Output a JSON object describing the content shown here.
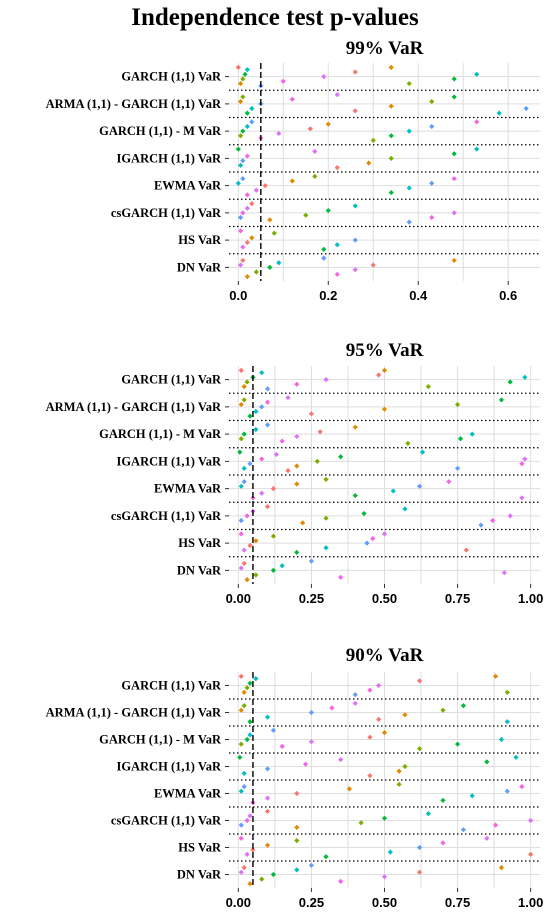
{
  "title": "Independence test p-values",
  "colors": {
    "series": [
      "#F8766D",
      "#E38900",
      "#7CAE00",
      "#00BA38",
      "#00BFC4",
      "#619CFF",
      "#F564E3",
      "#DB72FB"
    ],
    "threshold": "#000000",
    "grid": "#dedede",
    "separator": "#000000"
  },
  "chart_data": [
    {
      "type": "scatter",
      "title": "99% VaR",
      "categories": [
        "GARCH (1,1) VaR",
        "ARMA (1,1) - GARCH (1,1) VaR",
        "GARCH (1,1) - M VaR",
        "IGARCH (1,1) VaR",
        "EWMA VaR",
        "csGARCH (1,1) VaR",
        "HS VaR",
        "DN VaR"
      ],
      "xlim": [
        0,
        0.65
      ],
      "xticks": [
        0,
        0.2,
        0.4,
        0.6
      ],
      "xtick_labels": [
        "0.0",
        "0.2",
        "0.4",
        "0.6"
      ],
      "threshold": 0.05,
      "grid": true,
      "points": [
        [
          0.0,
          0.005,
          0.01,
          0.015,
          0.02,
          0.05,
          0.1,
          0.19,
          0.26,
          0.34,
          0.38,
          0.48,
          0.53
        ],
        [
          0.005,
          0.01,
          0.02,
          0.03,
          0.05,
          0.12,
          0.22,
          0.26,
          0.34,
          0.43,
          0.48,
          0.58,
          0.64
        ],
        [
          0.005,
          0.01,
          0.02,
          0.03,
          0.05,
          0.09,
          0.16,
          0.2,
          0.3,
          0.34,
          0.38,
          0.43,
          0.53
        ],
        [
          0.0,
          0.005,
          0.01,
          0.02,
          0.17,
          0.22,
          0.29,
          0.34,
          0.48,
          0.53
        ],
        [
          0.0,
          0.01,
          0.02,
          0.04,
          0.06,
          0.12,
          0.17,
          0.34,
          0.38,
          0.43,
          0.48
        ],
        [
          0.005,
          0.01,
          0.02,
          0.03,
          0.07,
          0.15,
          0.2,
          0.26,
          0.38,
          0.43,
          0.48
        ],
        [
          0.005,
          0.01,
          0.02,
          0.03,
          0.08,
          0.19,
          0.22,
          0.26
        ],
        [
          0.005,
          0.01,
          0.02,
          0.04,
          0.07,
          0.09,
          0.19,
          0.22,
          0.26,
          0.3,
          0.48
        ]
      ]
    },
    {
      "type": "scatter",
      "title": "95% VaR",
      "categories": [
        "GARCH (1,1) VaR",
        "ARMA (1,1) - GARCH (1,1) VaR",
        "GARCH (1,1) - M VaR",
        "IGARCH (1,1) VaR",
        "EWMA VaR",
        "csGARCH (1,1) VaR",
        "HS VaR",
        "DN VaR"
      ],
      "xlim": [
        0,
        1.0
      ],
      "xticks": [
        0,
        0.25,
        0.5,
        0.75,
        1.0
      ],
      "xtick_labels": [
        "0.00",
        "0.25",
        "0.50",
        "0.75",
        "1.00"
      ],
      "threshold": 0.05,
      "grid": true,
      "points": [
        [
          0.01,
          0.02,
          0.03,
          0.05,
          0.08,
          0.1,
          0.2,
          0.3,
          0.48,
          0.5,
          0.65,
          0.93,
          0.98
        ],
        [
          0.01,
          0.02,
          0.04,
          0.06,
          0.08,
          0.1,
          0.17,
          0.25,
          0.5,
          0.75,
          0.9
        ],
        [
          0.01,
          0.02,
          0.06,
          0.1,
          0.15,
          0.2,
          0.28,
          0.4,
          0.58,
          0.76,
          0.8
        ],
        [
          0.005,
          0.02,
          0.04,
          0.08,
          0.13,
          0.17,
          0.2,
          0.27,
          0.35,
          0.63,
          0.75,
          0.97,
          0.98
        ],
        [
          0.01,
          0.02,
          0.05,
          0.08,
          0.12,
          0.2,
          0.3,
          0.4,
          0.53,
          0.62,
          0.72,
          0.97
        ],
        [
          0.01,
          0.03,
          0.05,
          0.1,
          0.22,
          0.3,
          0.43,
          0.57,
          0.83,
          0.87,
          0.93
        ],
        [
          0.01,
          0.02,
          0.04,
          0.06,
          0.12,
          0.2,
          0.3,
          0.44,
          0.46,
          0.5,
          0.78
        ],
        [
          0.01,
          0.02,
          0.03,
          0.06,
          0.12,
          0.15,
          0.25,
          0.35,
          0.91
        ]
      ]
    },
    {
      "type": "scatter",
      "title": "90% VaR",
      "categories": [
        "GARCH (1,1) VaR",
        "ARMA (1,1) - GARCH (1,1) VaR",
        "GARCH (1,1) - M VaR",
        "IGARCH (1,1) VaR",
        "EWMA VaR",
        "csGARCH (1,1) VaR",
        "HS VaR",
        "DN VaR"
      ],
      "xlim": [
        0,
        1.0
      ],
      "xticks": [
        0,
        0.25,
        0.5,
        0.75,
        1.0
      ],
      "xtick_labels": [
        "0.00",
        "0.25",
        "0.50",
        "0.75",
        "1.00"
      ],
      "threshold": 0.05,
      "grid": true,
      "points": [
        [
          0.01,
          0.02,
          0.03,
          0.04,
          0.06,
          0.4,
          0.45,
          0.48,
          0.62,
          0.88,
          0.92
        ],
        [
          0.01,
          0.02,
          0.04,
          0.1,
          0.25,
          0.32,
          0.4,
          0.48,
          0.57,
          0.7,
          0.77,
          0.92
        ],
        [
          0.01,
          0.03,
          0.04,
          0.12,
          0.15,
          0.25,
          0.45,
          0.5,
          0.62,
          0.75,
          0.9
        ],
        [
          0.005,
          0.02,
          0.1,
          0.23,
          0.35,
          0.45,
          0.55,
          0.57,
          0.85,
          0.95
        ],
        [
          0.01,
          0.02,
          0.05,
          0.1,
          0.2,
          0.38,
          0.55,
          0.7,
          0.8,
          0.92,
          0.97
        ],
        [
          0.01,
          0.03,
          0.04,
          0.1,
          0.2,
          0.42,
          0.5,
          0.65,
          0.77,
          0.88,
          1.0
        ],
        [
          0.01,
          0.03,
          0.05,
          0.1,
          0.2,
          0.3,
          0.52,
          0.62,
          0.7,
          0.85,
          1.0
        ],
        [
          0.01,
          0.02,
          0.04,
          0.08,
          0.12,
          0.2,
          0.25,
          0.35,
          0.5,
          0.62,
          0.9
        ]
      ]
    }
  ]
}
